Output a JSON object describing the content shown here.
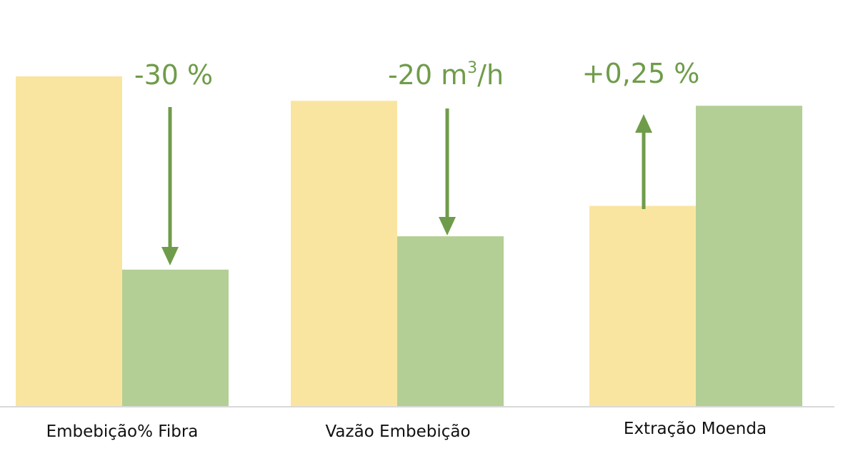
{
  "chart_data": {
    "type": "bar",
    "categories": [
      "Embebição% Fibra",
      "Vazão Embebição",
      "Extração Moenda"
    ],
    "series": [
      {
        "values": [
          100,
          92.6,
          60.8
        ]
      },
      {
        "values": [
          41.5,
          51.6,
          91.1
        ]
      }
    ],
    "annotations": [
      {
        "category": "Embebição% Fibra",
        "text": "-30 %",
        "direction": "down",
        "superscript": ""
      },
      {
        "category": "Vazão Embebição",
        "text": "-20 m",
        "superscript": "3",
        "suffix": "/h",
        "direction": "down"
      },
      {
        "category": "Extração Moenda",
        "text": "+0,25 %",
        "direction": "up",
        "superscript": ""
      }
    ],
    "ylim": [
      0,
      100
    ],
    "grid": false,
    "legend": "none",
    "colors": {
      "series": [
        "#fae5a0",
        "#b3cf95"
      ],
      "arrow": "#6f9c4a",
      "axis": "#d9d9d9",
      "text": "#111111"
    }
  }
}
